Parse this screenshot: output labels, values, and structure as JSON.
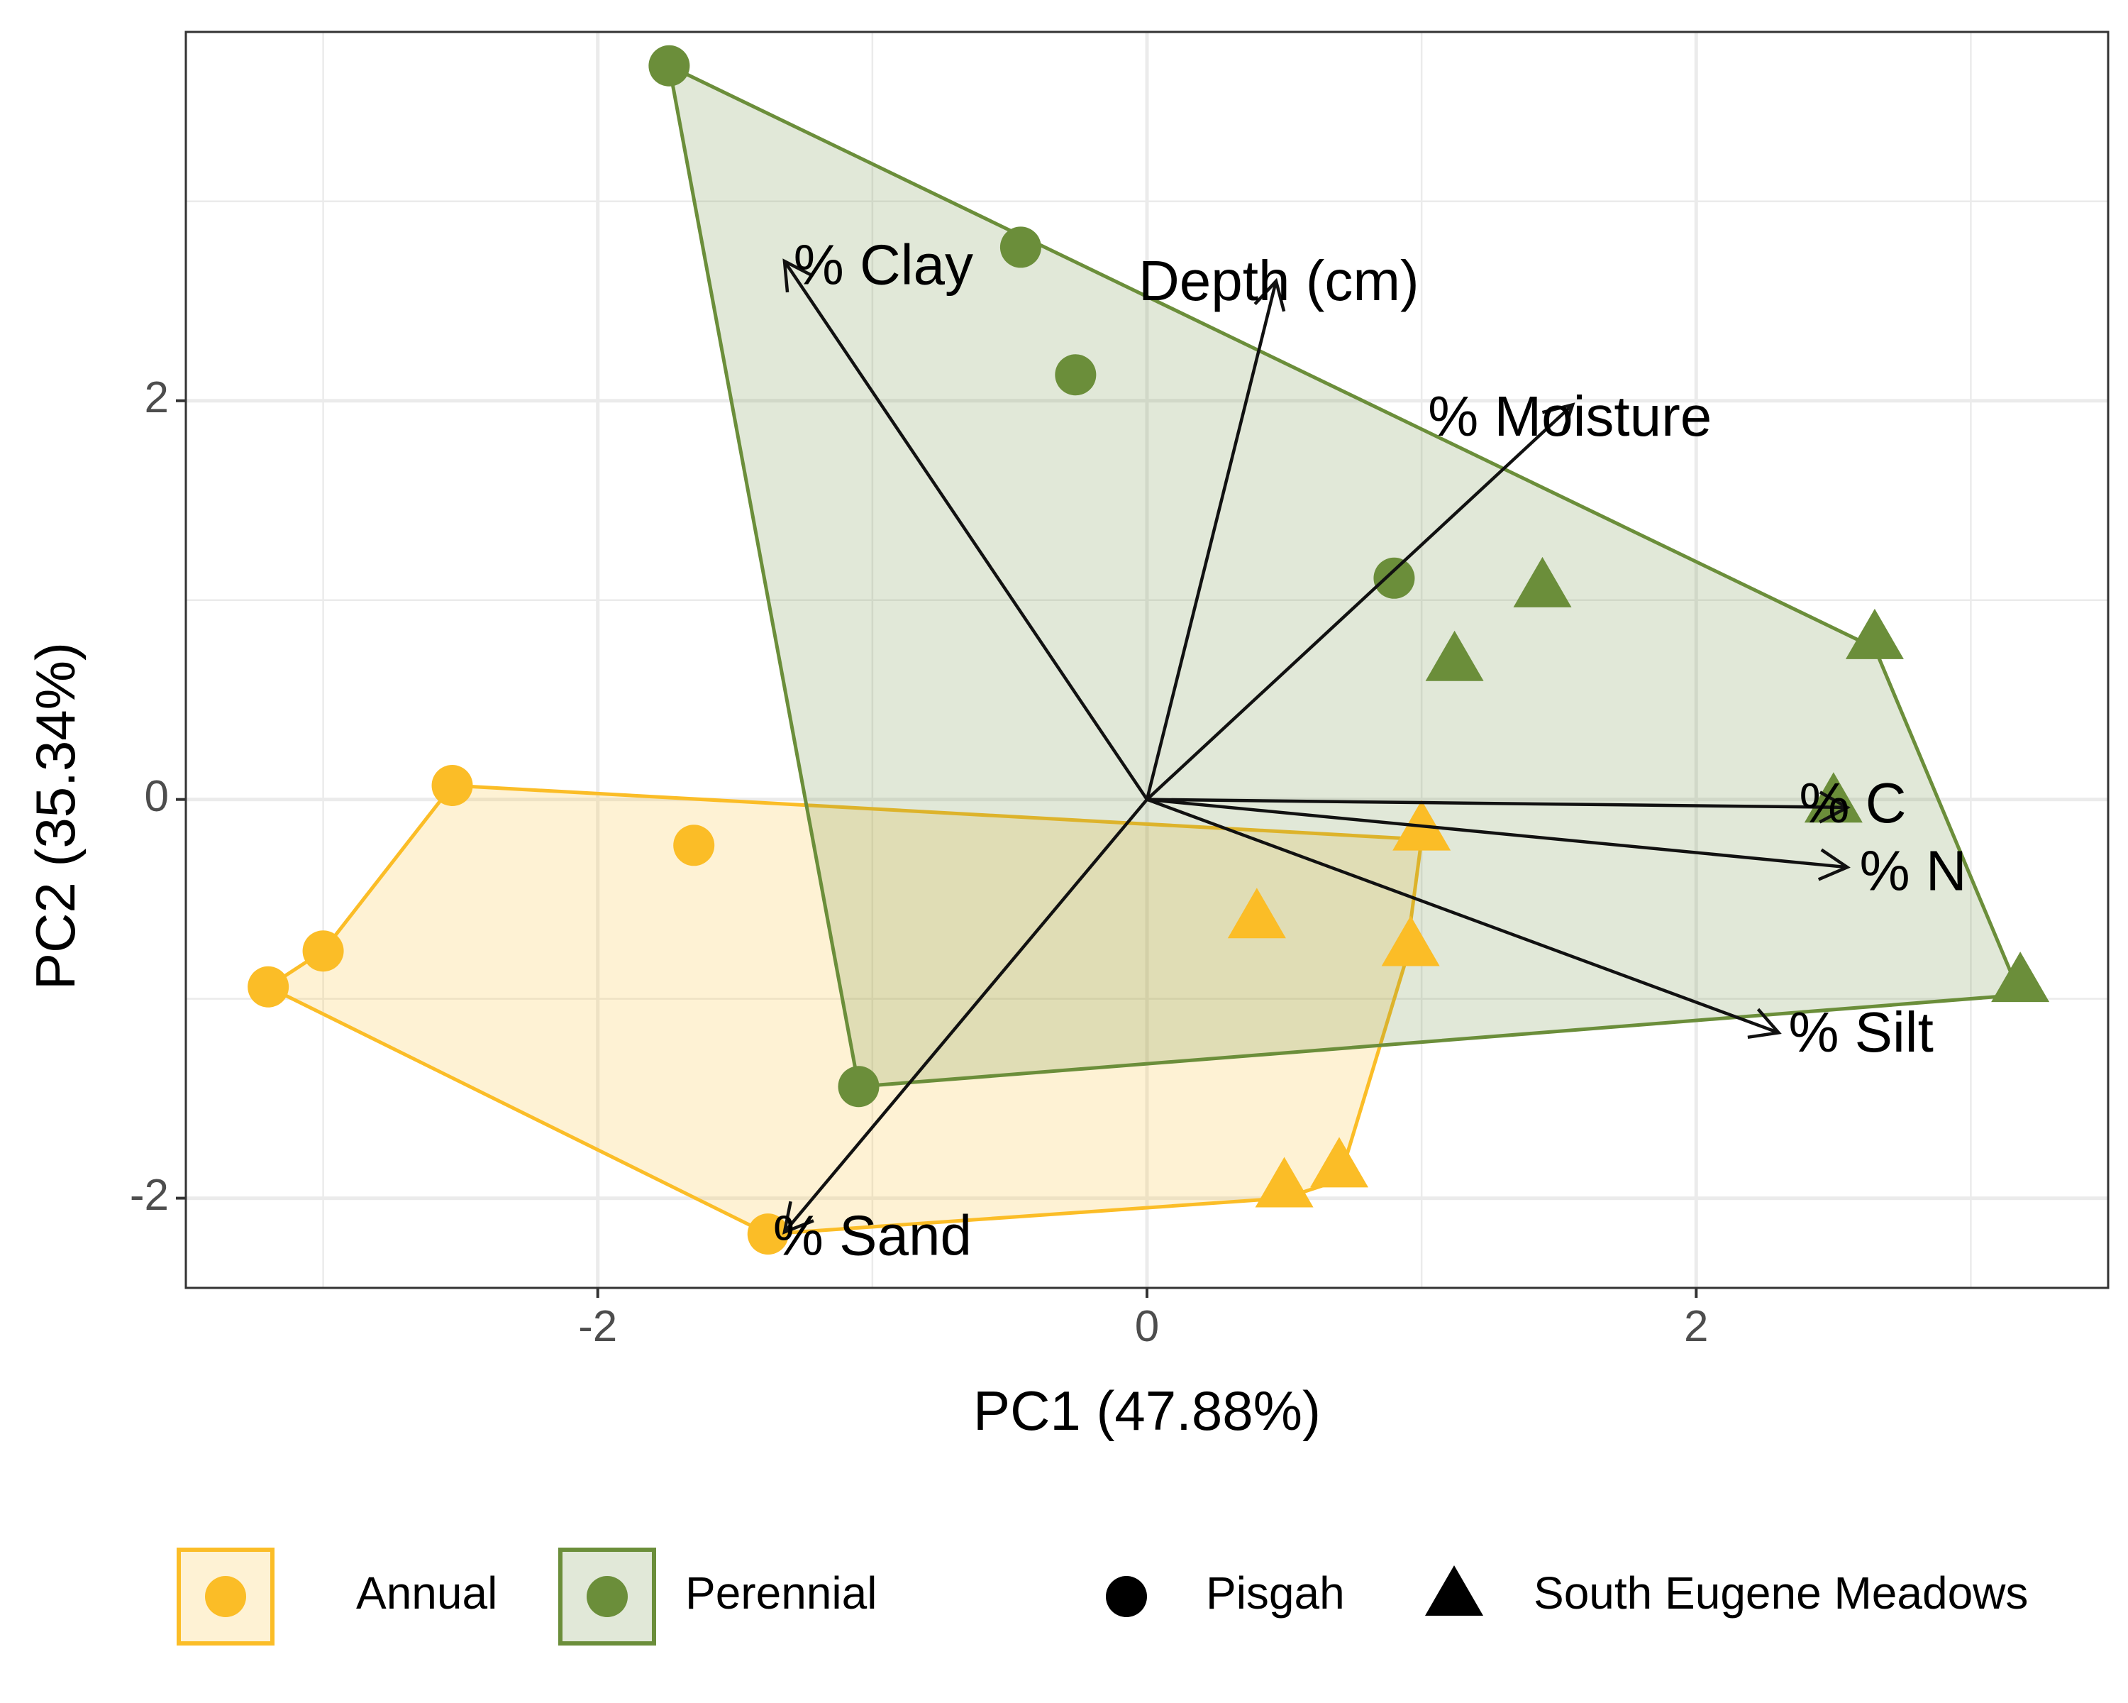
{
  "chart_data": {
    "type": "scatter",
    "title": "",
    "xlabel": "PC1 (47.88%)",
    "ylabel": "PC2 (35.34%)",
    "xlim": [
      -3.5,
      3.5
    ],
    "ylim": [
      -2.45,
      3.85
    ],
    "x_ticks": [
      -2,
      0,
      2
    ],
    "y_ticks": [
      -2,
      0,
      2
    ],
    "x_tick_labels": [
      "-2",
      "0",
      "2"
    ],
    "y_tick_labels": [
      "-2",
      "0",
      "2"
    ],
    "grid": true,
    "legend_position": "bottom",
    "colors": {
      "Annual": "#FBBD27",
      "Perennial": "#6B8E3A",
      "arrow": "#111111"
    },
    "groups": [
      {
        "name": "Annual",
        "points": [
          {
            "x": -2.53,
            "y": 0.07,
            "site": "Pisgah"
          },
          {
            "x": -1.65,
            "y": -0.23,
            "site": "Pisgah"
          },
          {
            "x": -3.0,
            "y": -0.76,
            "site": "Pisgah"
          },
          {
            "x": -3.2,
            "y": -0.94,
            "site": "Pisgah"
          },
          {
            "x": -1.38,
            "y": -2.18,
            "site": "Pisgah"
          },
          {
            "x": 1.0,
            "y": -0.16,
            "site": "South Eugene Meadows"
          },
          {
            "x": 0.4,
            "y": -0.6,
            "site": "South Eugene Meadows"
          },
          {
            "x": 0.96,
            "y": -0.74,
            "site": "South Eugene Meadows"
          },
          {
            "x": 0.7,
            "y": -1.85,
            "site": "South Eugene Meadows"
          },
          {
            "x": 0.5,
            "y": -1.95,
            "site": "South Eugene Meadows"
          }
        ],
        "hull": [
          [
            -2.53,
            0.07
          ],
          [
            1.0,
            -0.2
          ],
          [
            0.94,
            -0.82
          ],
          [
            0.7,
            -1.91
          ],
          [
            0.5,
            -2.0
          ],
          [
            -1.38,
            -2.18
          ],
          [
            -3.2,
            -0.94
          ],
          [
            -3.0,
            -0.76
          ]
        ]
      },
      {
        "name": "Perennial",
        "points": [
          {
            "x": -1.74,
            "y": 3.68,
            "site": "Pisgah"
          },
          {
            "x": -0.46,
            "y": 2.77,
            "site": "Pisgah"
          },
          {
            "x": -0.26,
            "y": 2.13,
            "site": "Pisgah"
          },
          {
            "x": 0.9,
            "y": 1.11,
            "site": "Pisgah"
          },
          {
            "x": -1.05,
            "y": -1.44,
            "site": "Pisgah"
          },
          {
            "x": 1.44,
            "y": 1.06,
            "site": "South Eugene Meadows"
          },
          {
            "x": 1.12,
            "y": 0.69,
            "site": "South Eugene Meadows"
          },
          {
            "x": 2.65,
            "y": 0.8,
            "site": "South Eugene Meadows"
          },
          {
            "x": 2.5,
            "y": -0.02,
            "site": "South Eugene Meadows"
          },
          {
            "x": 3.18,
            "y": -0.92,
            "site": "South Eugene Meadows"
          }
        ],
        "hull": [
          [
            -1.74,
            3.68
          ],
          [
            2.65,
            0.76
          ],
          [
            3.18,
            -0.98
          ],
          [
            -1.05,
            -1.44
          ]
        ]
      }
    ],
    "loadings": [
      {
        "name": "% Clay",
        "x": -1.32,
        "y": 2.7,
        "label_x": -0.96,
        "label_y": 2.66
      },
      {
        "name": "Depth (cm)",
        "x": 0.47,
        "y": 2.6,
        "label_x": 0.48,
        "label_y": 2.58
      },
      {
        "name": "% Moisture",
        "x": 1.55,
        "y": 1.98,
        "label_x": 1.54,
        "label_y": 1.9
      },
      {
        "name": "% C",
        "x": 2.55,
        "y": -0.04,
        "label_x": 2.57,
        "label_y": -0.04
      },
      {
        "name": "% N",
        "x": 2.55,
        "y": -0.34,
        "label_x": 2.79,
        "label_y": -0.38
      },
      {
        "name": "% Silt",
        "x": 2.3,
        "y": -1.17,
        "label_x": 2.6,
        "label_y": -1.19
      },
      {
        "name": "% Sand",
        "x": -1.32,
        "y": -2.17,
        "label_x": -1.0,
        "label_y": -2.21
      }
    ],
    "legend": {
      "fill_title": "",
      "shape_title": "",
      "fill_items": [
        "Annual",
        "Perennial"
      ],
      "shape_items": [
        {
          "label": "Pisgah",
          "shape": "circle"
        },
        {
          "label": "South Eugene Meadows",
          "shape": "triangle"
        }
      ]
    }
  }
}
